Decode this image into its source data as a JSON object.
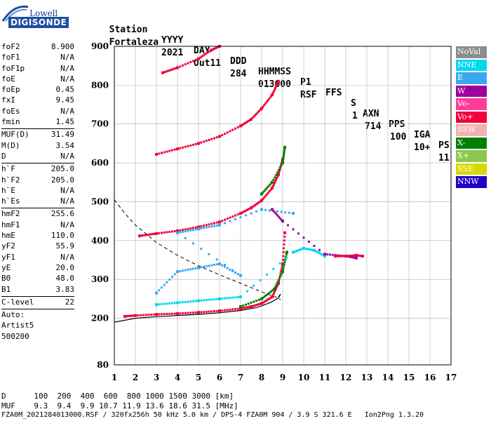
{
  "logo": {
    "brand": "Lowell",
    "product": "DIGISONDE"
  },
  "header": {
    "labels": [
      "Station",
      "YYYY",
      "DAY",
      "DDD",
      "HHMMSS",
      "P1",
      "FFS",
      "S",
      "AXN",
      "PPS",
      "IGA",
      "PS"
    ],
    "values": [
      "Fortaleza",
      "2021",
      "Out11",
      "284",
      "013000",
      "RSF",
      "",
      "1",
      "714",
      "100",
      "10+",
      "11"
    ]
  },
  "params": [
    {
      "name": "foF2",
      "value": "8.900"
    },
    {
      "name": "foF1",
      "value": "N/A"
    },
    {
      "name": "foF1p",
      "value": "N/A"
    },
    {
      "name": "foE",
      "value": "N/A"
    },
    {
      "name": "foEp",
      "value": "0.45"
    },
    {
      "name": "fxI",
      "value": "9.45"
    },
    {
      "name": "foEs",
      "value": "N/A"
    },
    {
      "name": "fmin",
      "value": "1.45"
    },
    {
      "name": "MUF(D)",
      "value": "31.49",
      "sep": true
    },
    {
      "name": "M(D)",
      "value": "3.54"
    },
    {
      "name": "D",
      "value": "N/A"
    },
    {
      "name": "h`F",
      "value": "205.0",
      "sep": true
    },
    {
      "name": "h`F2",
      "value": "205.0"
    },
    {
      "name": "h`E",
      "value": "N/A"
    },
    {
      "name": "h`Es",
      "value": "N/A"
    },
    {
      "name": "hmF2",
      "value": "255.6",
      "sep": true
    },
    {
      "name": "hmF1",
      "value": "N/A"
    },
    {
      "name": "hmE",
      "value": "110.0"
    },
    {
      "name": "yF2",
      "value": "55.9"
    },
    {
      "name": "yF1",
      "value": "N/A"
    },
    {
      "name": "yE",
      "value": "20.0"
    },
    {
      "name": "B0",
      "value": "48.0"
    },
    {
      "name": "B1",
      "value": "3.83"
    },
    {
      "name": "C-level",
      "value": "22",
      "sep": true
    },
    {
      "name": "Auto:",
      "value": "",
      "sep": true
    },
    {
      "name": "Artist5",
      "value": ""
    },
    {
      "name": "500200",
      "value": ""
    }
  ],
  "legend": [
    {
      "label": "NoVal",
      "color": "#8c8c8c"
    },
    {
      "label": "NNE",
      "color": "#00d8f0"
    },
    {
      "label": "E",
      "color": "#3aa8f0"
    },
    {
      "label": "W",
      "color": "#a0009c"
    },
    {
      "label": "Vo-",
      "color": "#ff3c9c"
    },
    {
      "label": "Vo+",
      "color": "#f0003c"
    },
    {
      "label": "SSW",
      "color": "#f4b0b0"
    },
    {
      "label": "X-",
      "color": "#008000"
    },
    {
      "label": "X+",
      "color": "#8cc850"
    },
    {
      "label": "SSE",
      "color": "#d8d800"
    },
    {
      "label": "NNW",
      "color": "#2000c8"
    }
  ],
  "bottom_table": {
    "row1_label": "D",
    "row1_values": "100  200  400  600  800 1000 1500 3000 [km]",
    "row2_label": "MUF",
    "row2_values": "9.3  9.4  9.9 10.7 11.9 13.6 18.6 31.5 [MHz]"
  },
  "footer": "FZA0M_2021284013000.RSF / 320fx256h 50 kHz 5.0 km / DPS-4 FZA0M 904 / 3.9 S 321.6 E   Ion2Png 1.3.20",
  "chart_data": {
    "type": "scatter",
    "xlim": [
      1,
      17
    ],
    "ylim": [
      80,
      900
    ],
    "x_ticks": [
      1,
      2,
      3,
      4,
      5,
      6,
      7,
      8,
      9,
      10,
      11,
      12,
      13,
      14,
      15,
      16,
      17
    ],
    "y_ticks": [
      80,
      200,
      300,
      400,
      500,
      600,
      700,
      800,
      900
    ],
    "grid": true,
    "series": [
      {
        "name": "Vo+",
        "color": "#f0003c",
        "points": [
          [
            1.5,
            205
          ],
          [
            2,
            207
          ],
          [
            3,
            210
          ],
          [
            4,
            212
          ],
          [
            5,
            215
          ],
          [
            6,
            219
          ],
          [
            7,
            225
          ],
          [
            7.5,
            230
          ],
          [
            8,
            238
          ],
          [
            8.5,
            255
          ],
          [
            8.8,
            290
          ],
          [
            9,
            340
          ],
          [
            9.1,
            420
          ]
        ]
      },
      {
        "name": "Vo+",
        "color": "#f0003c",
        "points": [
          [
            2.2,
            412
          ],
          [
            3,
            418
          ],
          [
            4,
            425
          ],
          [
            5,
            435
          ],
          [
            6,
            448
          ],
          [
            7,
            470
          ],
          [
            7.5,
            484
          ],
          [
            8,
            503
          ],
          [
            8.5,
            535
          ],
          [
            8.8,
            570
          ],
          [
            9,
            610
          ]
        ]
      },
      {
        "name": "Vo+",
        "color": "#f0003c",
        "points": [
          [
            3,
            622
          ],
          [
            4,
            636
          ],
          [
            5,
            650
          ],
          [
            6,
            668
          ],
          [
            7,
            695
          ],
          [
            7.5,
            712
          ],
          [
            8,
            740
          ],
          [
            8.5,
            775
          ],
          [
            8.8,
            810
          ]
        ]
      },
      {
        "name": "Vo+",
        "color": "#f0003c",
        "points": [
          [
            3.3,
            832
          ],
          [
            4,
            845
          ],
          [
            5,
            868
          ],
          [
            5.6,
            890
          ],
          [
            6,
            900
          ]
        ]
      },
      {
        "name": "X-",
        "color": "#008000",
        "points": [
          [
            7,
            230
          ],
          [
            8,
            250
          ],
          [
            8.6,
            275
          ],
          [
            9,
            320
          ],
          [
            9.2,
            370
          ]
        ]
      },
      {
        "name": "X-",
        "color": "#008000",
        "points": [
          [
            8,
            520
          ],
          [
            8.5,
            550
          ],
          [
            9,
            600
          ],
          [
            9.1,
            640
          ]
        ]
      },
      {
        "name": "NNE",
        "color": "#00d8f0",
        "points": [
          [
            3,
            235
          ],
          [
            4,
            240
          ],
          [
            5,
            245
          ],
          [
            6,
            250
          ],
          [
            7,
            255
          ],
          [
            9.5,
            370
          ],
          [
            10,
            380
          ],
          [
            10.5,
            375
          ],
          [
            11,
            360
          ]
        ]
      },
      {
        "name": "E",
        "color": "#3aa8f0",
        "points": [
          [
            3,
            265
          ],
          [
            4,
            320
          ],
          [
            5,
            330
          ],
          [
            6,
            340
          ],
          [
            7,
            310
          ],
          [
            4,
            420
          ],
          [
            5,
            430
          ],
          [
            6,
            440
          ],
          [
            8,
            480
          ],
          [
            9.5,
            470
          ]
        ]
      },
      {
        "name": "W",
        "color": "#a0009c",
        "points": [
          [
            8.5,
            480
          ],
          [
            9,
            450
          ],
          [
            11,
            365
          ],
          [
            12,
            360
          ],
          [
            12.5,
            355
          ]
        ]
      },
      {
        "name": "Vo+",
        "color": "#f0003c",
        "points": [
          [
            11.5,
            360
          ],
          [
            12,
            360
          ],
          [
            12.5,
            362
          ],
          [
            12.8,
            360
          ]
        ]
      }
    ]
  }
}
